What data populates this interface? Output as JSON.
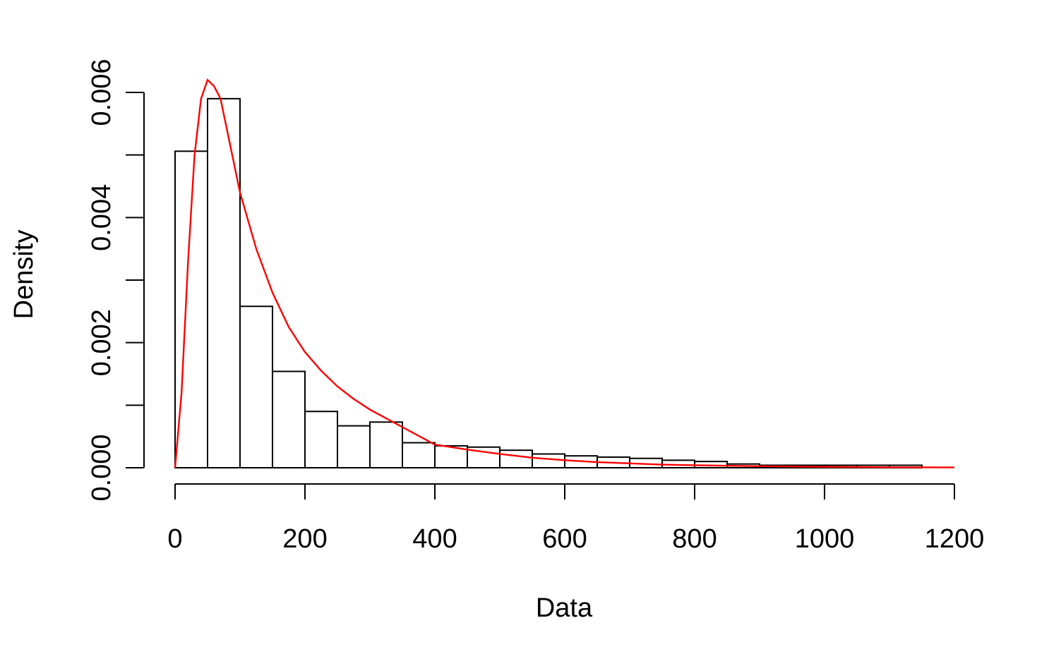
{
  "chart_data": {
    "type": "bar",
    "title": "",
    "xlabel": "Data",
    "ylabel": "Density",
    "xlim": [
      0,
      1200
    ],
    "ylim": [
      0,
      0.006
    ],
    "x_ticks": [
      0,
      200,
      400,
      600,
      800,
      1000,
      1200
    ],
    "x_tick_labels": [
      "0",
      "200",
      "400",
      "600",
      "800",
      "1000",
      "1200"
    ],
    "y_ticks": [
      0,
      0.001,
      0.002,
      0.003,
      0.004,
      0.005,
      0.006
    ],
    "y_tick_labels": [
      "0.000",
      "",
      "0.002",
      "",
      "0.004",
      "",
      "0.006"
    ],
    "bin_width": 50,
    "bins": [
      {
        "x0": 0,
        "x1": 50,
        "density": 0.00506
      },
      {
        "x0": 50,
        "x1": 100,
        "density": 0.0059
      },
      {
        "x0": 100,
        "x1": 150,
        "density": 0.00258
      },
      {
        "x0": 150,
        "x1": 200,
        "density": 0.00154
      },
      {
        "x0": 200,
        "x1": 250,
        "density": 0.0009
      },
      {
        "x0": 250,
        "x1": 300,
        "density": 0.00067
      },
      {
        "x0": 300,
        "x1": 350,
        "density": 0.00073
      },
      {
        "x0": 350,
        "x1": 400,
        "density": 0.0004
      },
      {
        "x0": 400,
        "x1": 450,
        "density": 0.00035
      },
      {
        "x0": 450,
        "x1": 500,
        "density": 0.00033
      },
      {
        "x0": 500,
        "x1": 550,
        "density": 0.00028
      },
      {
        "x0": 550,
        "x1": 600,
        "density": 0.00022
      },
      {
        "x0": 600,
        "x1": 650,
        "density": 0.00019
      },
      {
        "x0": 650,
        "x1": 700,
        "density": 0.00017
      },
      {
        "x0": 700,
        "x1": 750,
        "density": 0.00015
      },
      {
        "x0": 750,
        "x1": 800,
        "density": 0.00012
      },
      {
        "x0": 800,
        "x1": 850,
        "density": 0.0001
      },
      {
        "x0": 850,
        "x1": 900,
        "density": 6e-05
      },
      {
        "x0": 900,
        "x1": 950,
        "density": 4e-05
      },
      {
        "x0": 950,
        "x1": 1000,
        "density": 4e-05
      },
      {
        "x0": 1000,
        "x1": 1050,
        "density": 4e-05
      },
      {
        "x0": 1050,
        "x1": 1100,
        "density": 4e-05
      },
      {
        "x0": 1100,
        "x1": 1150,
        "density": 4e-05
      }
    ],
    "density_curve": {
      "color": "#ff0000",
      "points": [
        [
          0,
          0
        ],
        [
          10,
          0.0012
        ],
        [
          20,
          0.0033
        ],
        [
          30,
          0.005
        ],
        [
          40,
          0.0059
        ],
        [
          50,
          0.0062
        ],
        [
          60,
          0.0061
        ],
        [
          70,
          0.0059
        ],
        [
          80,
          0.0054
        ],
        [
          90,
          0.0049
        ],
        [
          100,
          0.0044
        ],
        [
          125,
          0.0035
        ],
        [
          150,
          0.0028
        ],
        [
          175,
          0.00225
        ],
        [
          200,
          0.00185
        ],
        [
          225,
          0.00155
        ],
        [
          250,
          0.0013
        ],
        [
          275,
          0.0011
        ],
        [
          300,
          0.00093
        ],
        [
          350,
          0.00065
        ],
        [
          400,
          0.00037
        ],
        [
          450,
          0.00029
        ],
        [
          500,
          0.00022
        ],
        [
          550,
          0.00016
        ],
        [
          600,
          0.00012
        ],
        [
          650,
          9e-05
        ],
        [
          700,
          7e-05
        ],
        [
          750,
          5e-05
        ],
        [
          800,
          4e-05
        ],
        [
          900,
          2.5e-05
        ],
        [
          1000,
          1.5e-05
        ],
        [
          1100,
          8e-06
        ],
        [
          1200,
          5e-06
        ]
      ]
    },
    "bar_color": "#ffffff",
    "edge_color": "#000000",
    "grid": false
  }
}
